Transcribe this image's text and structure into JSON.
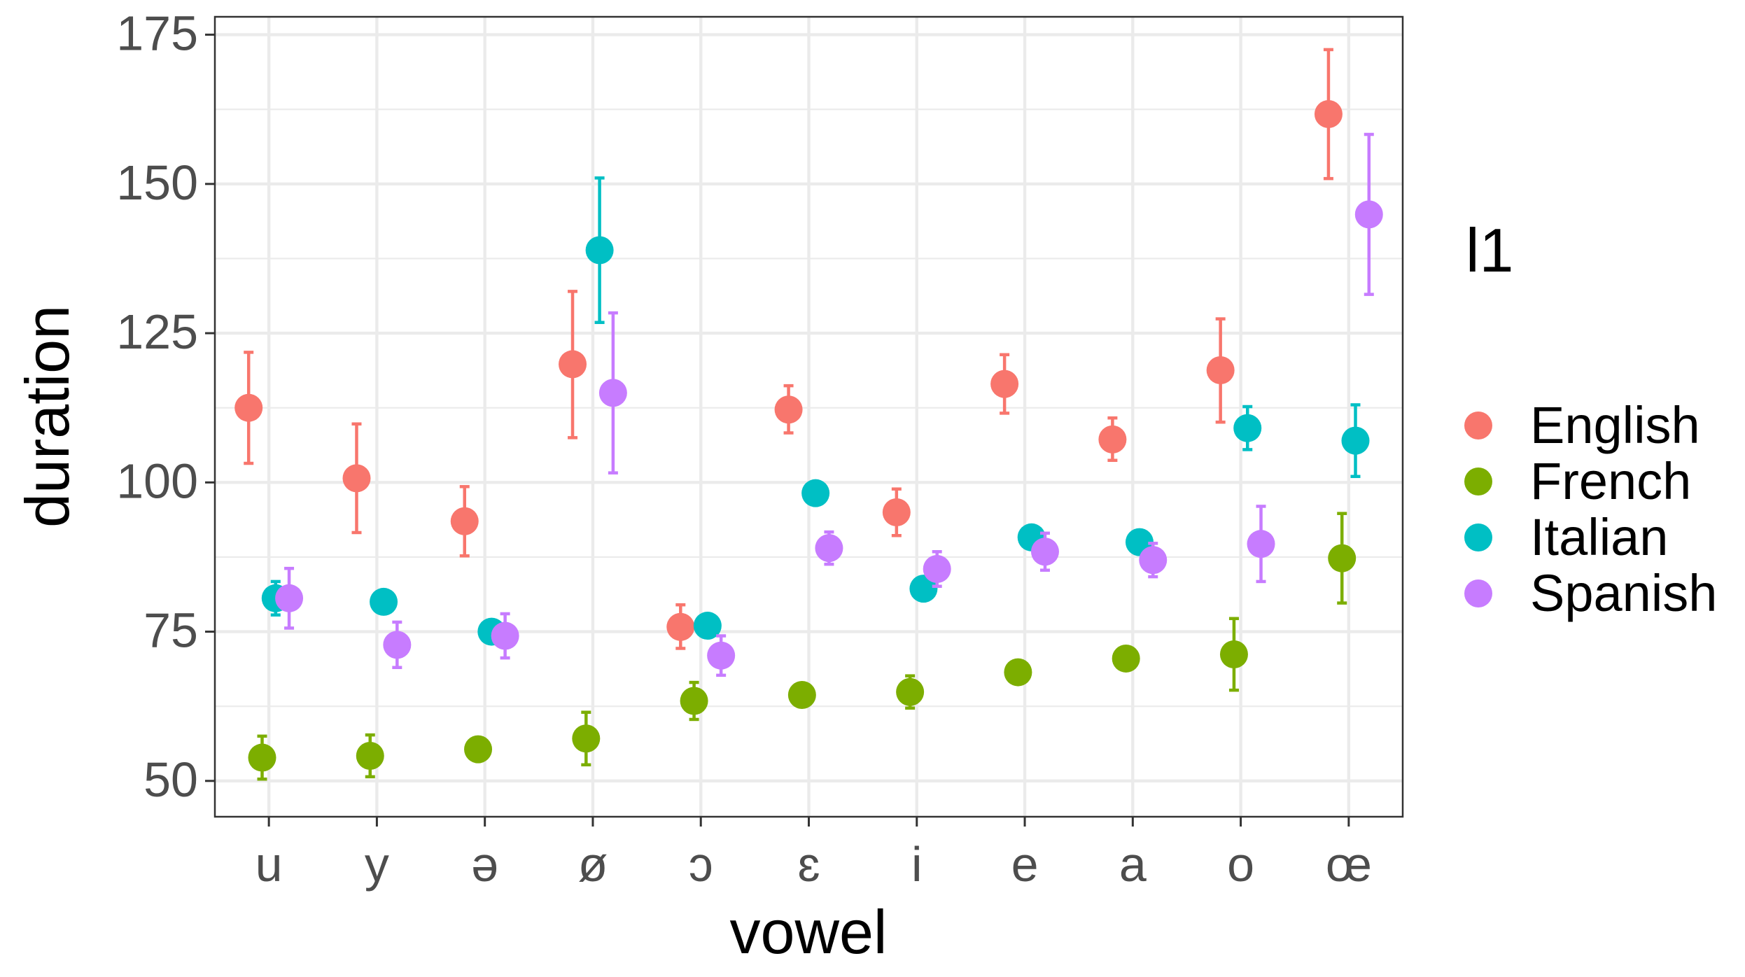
{
  "chart_data": {
    "type": "scatter",
    "subtype": "point-with-error-bars (dodged by group)",
    "xlabel": "vowel",
    "ylabel": "duration",
    "categories": [
      "u",
      "y",
      "ə",
      "ø",
      "ɔ",
      "ɛ",
      "i",
      "e",
      "a",
      "o",
      "œ"
    ],
    "ylim": [
      44,
      178
    ],
    "yticks": [
      50,
      75,
      100,
      125,
      150,
      175
    ],
    "grid": true,
    "legend": {
      "title": "l1",
      "position": "right",
      "entries": [
        "English",
        "French",
        "Italian",
        "Spanish"
      ]
    },
    "series": [
      {
        "name": "English",
        "color": "#F8766D",
        "values": [
          112.5,
          100.7,
          93.5,
          119.8,
          75.8,
          112.2,
          95.0,
          116.5,
          107.2,
          118.8,
          161.7
        ],
        "lower": [
          103.2,
          91.6,
          87.7,
          107.5,
          72.2,
          108.3,
          91.1,
          111.6,
          103.7,
          110.1,
          150.9
        ],
        "upper": [
          121.8,
          109.8,
          99.3,
          132.0,
          79.5,
          116.2,
          98.9,
          121.4,
          110.8,
          127.4,
          172.5
        ]
      },
      {
        "name": "French",
        "color": "#7CAE00",
        "values": [
          53.9,
          54.2,
          55.3,
          57.1,
          63.4,
          64.4,
          64.9,
          68.2,
          70.5,
          71.2,
          87.3
        ],
        "lower": [
          50.3,
          50.7,
          55.3,
          52.7,
          60.3,
          64.4,
          62.2,
          66.3,
          70.5,
          65.2,
          79.8
        ],
        "upper": [
          57.5,
          57.7,
          55.3,
          61.5,
          66.5,
          64.4,
          67.6,
          70.1,
          70.5,
          77.2,
          94.8
        ]
      },
      {
        "name": "Italian",
        "color": "#00BFC4",
        "values": [
          80.6,
          80.0,
          75.0,
          138.9,
          76.0,
          98.2,
          82.2,
          90.8,
          90.0,
          109.1,
          107.0
        ],
        "lower": [
          77.8,
          80.0,
          75.0,
          126.8,
          76.0,
          98.2,
          82.2,
          89.0,
          90.0,
          105.5,
          101.0
        ],
        "upper": [
          83.4,
          80.0,
          75.0,
          151.0,
          76.0,
          98.2,
          82.2,
          92.6,
          90.0,
          112.7,
          113.0
        ]
      },
      {
        "name": "Spanish",
        "color": "#C77CFF",
        "values": [
          80.6,
          72.8,
          74.3,
          115.0,
          71.0,
          89.0,
          85.5,
          88.4,
          87.0,
          89.7,
          144.9
        ],
        "lower": [
          75.6,
          69.0,
          70.6,
          101.6,
          67.7,
          86.3,
          82.6,
          85.3,
          84.2,
          83.4,
          131.5
        ],
        "upper": [
          85.6,
          76.6,
          78.0,
          128.4,
          74.3,
          91.7,
          88.4,
          91.5,
          89.8,
          96.0,
          158.3
        ]
      }
    ]
  }
}
